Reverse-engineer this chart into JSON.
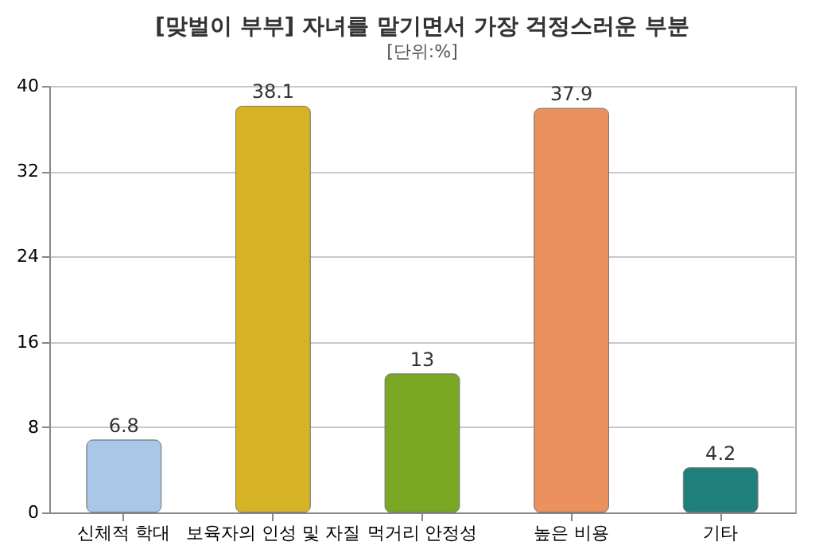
{
  "chart_data": {
    "type": "bar",
    "title": "[맞벌이 부부] 자녀를 맡기면서 가장 걱정스러운 부분",
    "subtitle": "[단위:%]",
    "categories": [
      "신체적 학대",
      "보육자의 인성 및 자질",
      "먹거리 안정성",
      "높은 비용",
      "기타"
    ],
    "values": [
      6.8,
      38.1,
      13,
      37.9,
      4.2
    ],
    "colors": [
      "#a9c7e6",
      "#d6b324",
      "#7aa823",
      "#eb915e",
      "#1f7f7b"
    ],
    "ylim": [
      0,
      40
    ],
    "yticks": [
      0,
      8,
      16,
      24,
      32,
      40
    ],
    "grid": "y",
    "data_labels": true
  }
}
